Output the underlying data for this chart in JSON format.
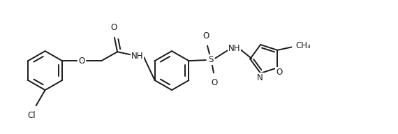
{
  "bg_color": "#ffffff",
  "line_color": "#1a1a1a",
  "line_width": 1.4,
  "font_size": 8.5,
  "fig_width": 5.7,
  "fig_height": 1.92,
  "dpi": 100,
  "xlim": [
    0,
    10.5
  ],
  "ylim": [
    0,
    3.55
  ]
}
